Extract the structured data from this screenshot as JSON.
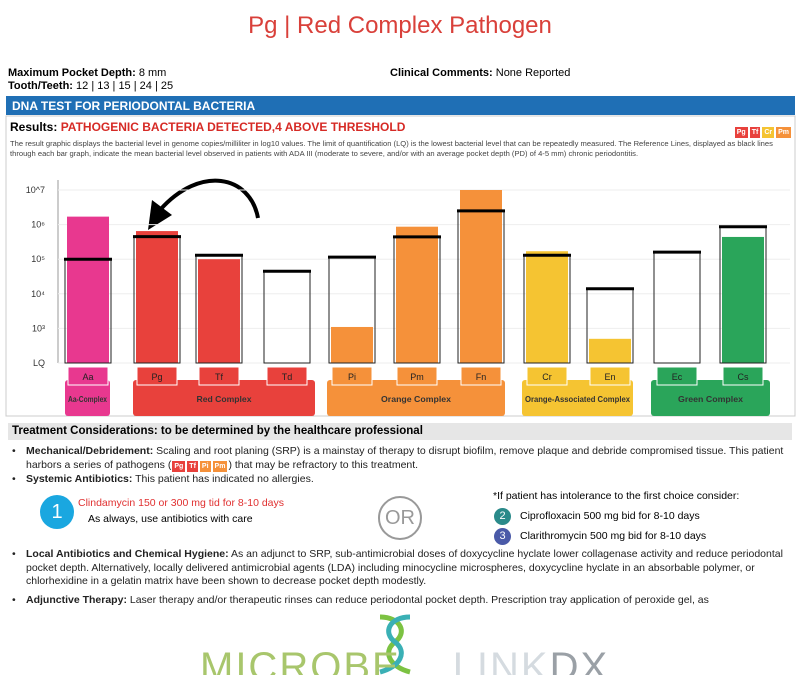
{
  "header": {
    "title": "Pg | Red Complex Pathogen"
  },
  "report": {
    "fields": [
      {
        "label": "Maximum Pocket Depth:",
        "value": "8 mm"
      },
      {
        "label": "Tooth/Teeth:",
        "value": "12 | 13 | 15 | 24 | 25"
      },
      {
        "label": "Clinical Comments:",
        "value": "None Reported"
      }
    ],
    "section_title": "DNA TEST FOR PERIODONTAL BACTERIA",
    "results_label": "Results:",
    "results_value": "PATHOGENIC BACTERIA DETECTED,4 ABOVE THRESHOLD",
    "badges": [
      "Pg",
      "Tf",
      "Cr",
      "Pm"
    ],
    "description": "The result graphic displays the bacterial level in genome copies/milliliter in log10 values. The limit of quantification (LQ) is the lowest bacterial level that can be repeatedly measured. The Reference Lines, displayed as black lines through each bar graph, indicate the mean bacterial level observed in patients with ADA III (moderate to severe, and/or with an average pocket depth (PD) of 4-5 mm) chronic periodontitis."
  },
  "chart_data": {
    "type": "bar",
    "log_scale": true,
    "ylim": [
      100,
      10000000
    ],
    "yticks": [
      {
        "value": 100,
        "label": "LQ"
      },
      {
        "value": 1000,
        "label": "10³"
      },
      {
        "value": 10000,
        "label": "10⁴"
      },
      {
        "value": 100000,
        "label": "10⁵"
      },
      {
        "value": 1000000,
        "label": "10⁶"
      },
      {
        "value": 10000000,
        "label": "10^7"
      }
    ],
    "grid": true,
    "groups": [
      {
        "label": "Aa-Complex",
        "color": "#e8388f",
        "categories": [
          "Aa"
        ],
        "values": [
          1700000
        ],
        "reference": [
          100000
        ]
      },
      {
        "label": "Red Complex",
        "color": "#e8413c",
        "categories": [
          "Pg",
          "Tf",
          "Td"
        ],
        "values": [
          650000,
          100000,
          null
        ],
        "reference": [
          450000,
          130000,
          45000
        ]
      },
      {
        "label": "Orange Complex",
        "color": "#f5913a",
        "categories": [
          "Pi",
          "Pm",
          "Fn"
        ],
        "values": [
          1100,
          870000,
          10000000
        ],
        "reference": [
          115000,
          440000,
          2500000
        ]
      },
      {
        "label": "Orange-Associated Complex",
        "color": "#f5c432",
        "categories": [
          "Cr",
          "En"
        ],
        "values": [
          170000,
          500
        ],
        "reference": [
          130000,
          14000
        ]
      },
      {
        "label": "Green Complex",
        "color": "#2aa55a",
        "categories": [
          "Ec",
          "Cs"
        ],
        "values": [
          null,
          440000
        ],
        "reference": [
          160000,
          870000
        ]
      }
    ]
  },
  "treatment": {
    "title": "Treatment Considerations: to be determined by the healthcare professional",
    "mechanical": {
      "label": "Mechanical/Debridement:",
      "text": "Scaling and root planing (SRP) is a mainstay of therapy to disrupt biofilm, remove plaque and debride compromised tissue. This patient harbors a series of pathogens (",
      "badges": [
        "Pg",
        "Tf",
        "Pi",
        "Pm"
      ],
      "after": ") that may be refractory to this treatment."
    },
    "systemic": {
      "label": "Systemic Antibiotics:",
      "text": "This patient has indicated no allergies.",
      "first": {
        "number": "1",
        "drug": "Clindamycin 150 or 300 mg tid for 8-10 days",
        "note": "As always, use antibiotics with care"
      },
      "or": "OR",
      "alt_intro": "*If patient has intolerance to the first choice consider:",
      "alternatives": [
        {
          "number": "2",
          "drug": "Ciprofloxacin 500 mg bid for 8-10 days"
        },
        {
          "number": "3",
          "drug": "Clarithromycin 500 mg bid for 8-10 days"
        }
      ]
    },
    "local": {
      "label": "Local Antibiotics and Chemical Hygiene:",
      "text": "As an adjunct to SRP, sub-antimicrobial doses of doxycycline hyclate lower collagenase activity and reduce periodontal pocket depth. Alternatively, locally delivered antimicrobial agents (LDA) including minocycline microspheres, doxycycline hyclate in an absorbable polymer, or chlorhexidine in a gelatin matrix have been shown to decrease pocket depth modestly."
    },
    "adjunctive": {
      "label": "Adjunctive Therapy:",
      "text": "Laser therapy and/or therapeutic rinses can reduce periodontal pocket depth. Prescription tray application of peroxide gel, as"
    }
  },
  "logo": {
    "parts": [
      "MICROBE",
      "LINK",
      "DX"
    ]
  }
}
